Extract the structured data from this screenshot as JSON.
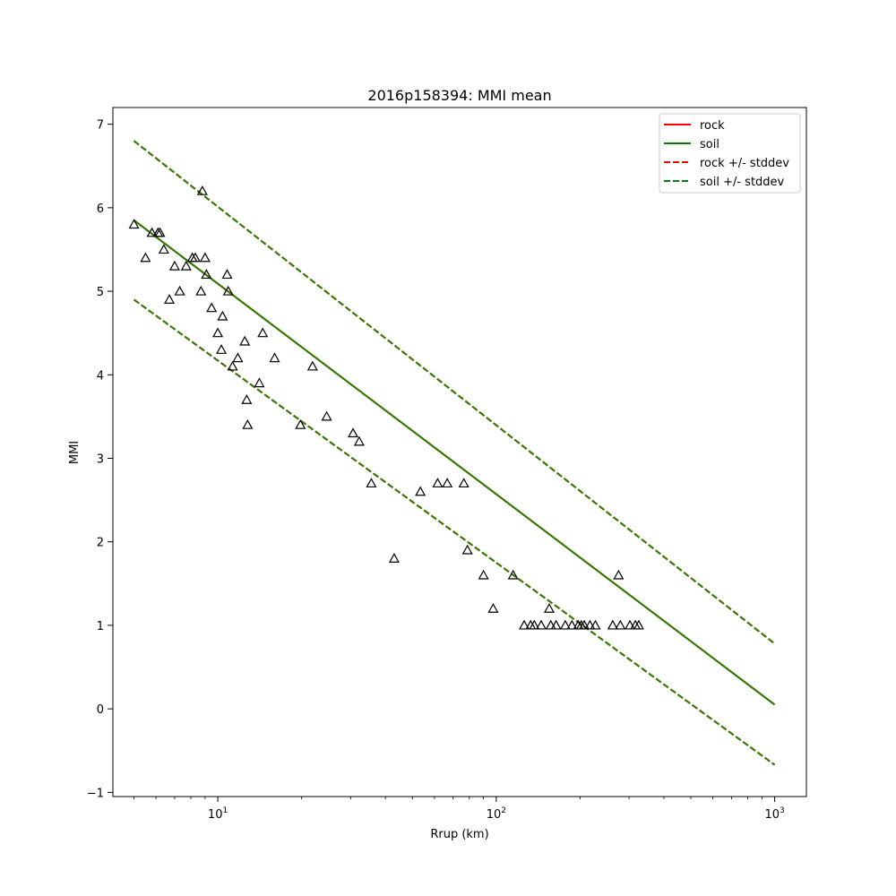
{
  "chart_data": {
    "type": "scatter",
    "title": "2016p158394: MMI mean",
    "xlabel": "Rrup (km)",
    "ylabel": "MMI",
    "xscale": "log",
    "xlim": [
      4.2,
      1300
    ],
    "ylim": [
      -1.05,
      7.2
    ],
    "xticks": [
      {
        "value": 10,
        "base": "10",
        "exp": "1"
      },
      {
        "value": 100,
        "base": "10",
        "exp": "2"
      },
      {
        "value": 1000,
        "base": "10",
        "exp": "3"
      }
    ],
    "yticks": [
      -1,
      0,
      1,
      2,
      3,
      4,
      5,
      6,
      7
    ],
    "ytick_labels": [
      "−1",
      "0",
      "1",
      "2",
      "3",
      "4",
      "5",
      "6",
      "7"
    ],
    "grid": false,
    "legend_position": "top-right",
    "legend": [
      {
        "label": "rock",
        "color": "#ff0000",
        "style": "solid"
      },
      {
        "label": "soil",
        "color": "#008000",
        "style": "solid"
      },
      {
        "label": "rock +/- stddev",
        "color": "#ff0000",
        "style": "dashed"
      },
      {
        "label": "soil +/- stddev",
        "color": "#008000",
        "style": "dashed"
      }
    ],
    "lines": [
      {
        "name": "rock",
        "color": "#ff0000",
        "style": "solid",
        "x": [
          5,
          1000
        ],
        "y": [
          5.85,
          0.05
        ]
      },
      {
        "name": "rock +/- stddev upper",
        "color": "#ff0000",
        "style": "dashed",
        "x": [
          5,
          1000
        ],
        "y": [
          6.8,
          0.78
        ]
      },
      {
        "name": "rock +/- stddev lower",
        "color": "#ff0000",
        "style": "dashed",
        "x": [
          5,
          1000
        ],
        "y": [
          4.9,
          -0.67
        ]
      },
      {
        "name": "soil",
        "color": "#267f00",
        "style": "solid",
        "x": [
          5,
          1000
        ],
        "y": [
          5.85,
          0.05
        ]
      },
      {
        "name": "soil +/- stddev upper",
        "color": "#267f00",
        "style": "dashed",
        "x": [
          5,
          1000
        ],
        "y": [
          6.8,
          0.78
        ]
      },
      {
        "name": "soil +/- stddev lower",
        "color": "#267f00",
        "style": "dashed",
        "x": [
          5,
          1000
        ],
        "y": [
          4.9,
          -0.67
        ]
      }
    ],
    "observations": {
      "marker": "triangle",
      "color": "#000000",
      "points": [
        [
          5.0,
          5.8
        ],
        [
          5.5,
          5.4
        ],
        [
          5.8,
          5.7
        ],
        [
          6.1,
          5.7
        ],
        [
          6.2,
          5.7
        ],
        [
          6.4,
          5.5
        ],
        [
          6.7,
          4.9
        ],
        [
          7.0,
          5.3
        ],
        [
          7.3,
          5.0
        ],
        [
          7.7,
          5.3
        ],
        [
          8.1,
          5.4
        ],
        [
          8.3,
          5.4
        ],
        [
          8.7,
          5.0
        ],
        [
          8.8,
          6.2
        ],
        [
          9.0,
          5.4
        ],
        [
          9.1,
          5.2
        ],
        [
          9.5,
          4.8
        ],
        [
          10.0,
          4.5
        ],
        [
          10.3,
          4.3
        ],
        [
          10.4,
          4.7
        ],
        [
          10.8,
          5.2
        ],
        [
          10.9,
          5.0
        ],
        [
          11.3,
          4.1
        ],
        [
          11.8,
          4.2
        ],
        [
          12.5,
          4.4
        ],
        [
          12.7,
          3.7
        ],
        [
          12.8,
          3.4
        ],
        [
          14.1,
          3.9
        ],
        [
          14.5,
          4.5
        ],
        [
          16.0,
          4.2
        ],
        [
          19.8,
          3.4
        ],
        [
          21.9,
          4.1
        ],
        [
          24.6,
          3.5
        ],
        [
          30.6,
          3.3
        ],
        [
          32.2,
          3.2
        ],
        [
          35.6,
          2.7
        ],
        [
          43.0,
          1.8
        ],
        [
          53.4,
          2.6
        ],
        [
          61.6,
          2.7
        ],
        [
          66.7,
          2.7
        ],
        [
          76.5,
          2.7
        ],
        [
          78.8,
          1.9
        ],
        [
          90.0,
          1.6
        ],
        [
          97.5,
          1.2
        ],
        [
          115.0,
          1.6
        ],
        [
          126.0,
          1.0
        ],
        [
          133.0,
          1.0
        ],
        [
          137.0,
          1.0
        ],
        [
          145.0,
          1.0
        ],
        [
          155.0,
          1.2
        ],
        [
          157.0,
          1.0
        ],
        [
          164.0,
          1.0
        ],
        [
          177.0,
          1.0
        ],
        [
          187.0,
          1.0
        ],
        [
          197.0,
          1.0
        ],
        [
          202.0,
          1.0
        ],
        [
          207.0,
          1.0
        ],
        [
          217.0,
          1.0
        ],
        [
          227.0,
          1.0
        ],
        [
          262.0,
          1.0
        ],
        [
          279.0,
          1.0
        ],
        [
          275.0,
          1.6
        ],
        [
          302.0,
          1.0
        ],
        [
          316.0,
          1.0
        ],
        [
          325.0,
          1.0
        ]
      ]
    }
  }
}
